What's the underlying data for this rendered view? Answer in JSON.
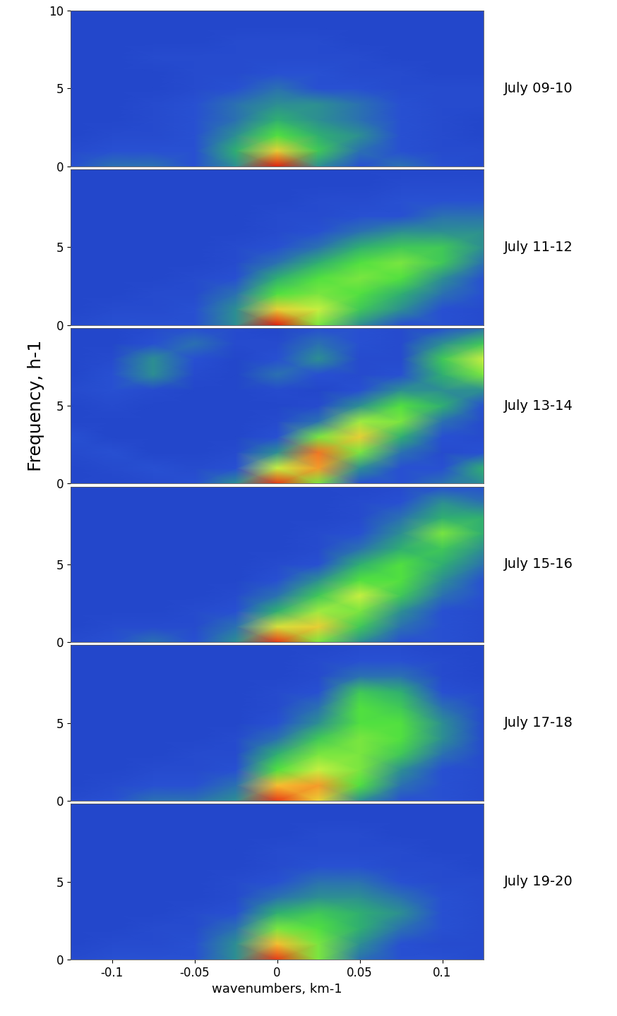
{
  "chart_data": [
    {
      "type": "heatmap",
      "title": "July 09-10",
      "x": [
        -0.125,
        -0.1,
        -0.075,
        -0.05,
        -0.025,
        0,
        0.025,
        0.05,
        0.075,
        0.1,
        0.125
      ],
      "y": [
        0,
        1,
        2,
        3,
        4,
        5,
        6,
        7,
        8,
        9,
        10
      ],
      "xlim": [
        -0.125,
        0.125
      ],
      "ylim": [
        0,
        10
      ],
      "xticks": [
        -0.1,
        -0.05,
        0,
        0.05,
        0.1
      ],
      "yticks": [
        0,
        5,
        10
      ],
      "color_range": [
        0,
        10
      ],
      "tick_labels": "y",
      "cells": [
        [
          2,
          2.5,
          2.5,
          2,
          3,
          10,
          3,
          2,
          2.5,
          2,
          1.5
        ],
        [
          1.5,
          2,
          2,
          2,
          3.5,
          7,
          4,
          2.5,
          2,
          1.5,
          1.5
        ],
        [
          1,
          1.5,
          1.5,
          2,
          3,
          4.5,
          3.5,
          3,
          2,
          1.5,
          1
        ],
        [
          1,
          1,
          1.5,
          2,
          2.5,
          3.5,
          3,
          2.5,
          2,
          1.5,
          1
        ],
        [
          1,
          1,
          1.5,
          2,
          2.5,
          3,
          3,
          2.5,
          2,
          1.5,
          1.5
        ],
        [
          1,
          1,
          1,
          1.5,
          2,
          2.5,
          2,
          2,
          1.5,
          1.5,
          1.5
        ],
        [
          1,
          1,
          1,
          1.5,
          1.5,
          2,
          2,
          1.5,
          1.5,
          1,
          1
        ],
        [
          1,
          1,
          1.5,
          1.5,
          1.5,
          1.5,
          1.5,
          1.5,
          1,
          1,
          1
        ],
        [
          1,
          1,
          1,
          1,
          1.5,
          1.5,
          1.5,
          1,
          1,
          1,
          1
        ],
        [
          1,
          1,
          1,
          1,
          1,
          1,
          1,
          1,
          1,
          1,
          1
        ],
        [
          1,
          1,
          1,
          1,
          1,
          1,
          1,
          1,
          1,
          1,
          1
        ]
      ]
    },
    {
      "type": "heatmap",
      "title": "July 11-12",
      "x": [
        -0.125,
        -0.1,
        -0.075,
        -0.05,
        -0.025,
        0,
        0.025,
        0.05,
        0.075,
        0.1,
        0.125
      ],
      "y": [
        0,
        1,
        2,
        3,
        4,
        5,
        6,
        7,
        8,
        9,
        10
      ],
      "xlim": [
        -0.125,
        0.125
      ],
      "ylim": [
        0,
        10
      ],
      "xticks": [
        -0.1,
        -0.05,
        0,
        0.05,
        0.1
      ],
      "yticks": [
        0,
        5
      ],
      "color_range": [
        0,
        10
      ],
      "tick_labels": "y",
      "cells": [
        [
          1.5,
          2,
          2,
          2,
          3,
          10,
          5,
          3,
          2,
          2,
          1.5
        ],
        [
          1,
          1.5,
          1.5,
          2,
          3,
          7,
          6,
          4,
          3,
          2,
          1.5
        ],
        [
          1,
          1,
          1.5,
          1.5,
          2.5,
          4.5,
          5,
          4.5,
          3.5,
          2.5,
          2
        ],
        [
          1,
          1,
          1,
          1.5,
          2,
          3.5,
          4.5,
          5,
          4.5,
          3,
          2
        ],
        [
          1,
          1,
          1,
          1,
          1.5,
          2.5,
          3.5,
          4.5,
          5,
          4,
          2.5
        ],
        [
          1,
          1,
          1,
          1,
          1.5,
          2,
          2.5,
          3.5,
          4,
          4,
          3
        ],
        [
          1,
          1,
          1,
          1,
          1,
          1.5,
          2,
          2.5,
          3,
          3,
          3
        ],
        [
          1,
          1,
          1,
          1,
          1,
          1.5,
          1.5,
          2,
          2,
          2.5,
          2.5
        ],
        [
          1,
          1,
          1,
          1,
          1,
          1,
          1.5,
          1.5,
          2,
          2,
          2
        ],
        [
          1,
          1,
          1,
          1,
          1,
          1,
          1,
          1,
          1.5,
          1.5,
          1.5
        ],
        [
          1,
          1,
          1,
          1,
          1,
          1,
          1,
          1,
          1,
          1,
          1
        ]
      ]
    },
    {
      "type": "heatmap",
      "title": "July 13-14",
      "ylabel": "Frequency, h-1",
      "x": [
        -0.125,
        -0.1,
        -0.075,
        -0.05,
        -0.025,
        0,
        0.025,
        0.05,
        0.075,
        0.1,
        0.125
      ],
      "y": [
        0,
        1,
        2,
        3,
        4,
        5,
        6,
        7,
        8,
        9,
        10
      ],
      "xlim": [
        -0.125,
        0.125
      ],
      "ylim": [
        0,
        10
      ],
      "xticks": [
        -0.1,
        -0.05,
        0,
        0.05,
        0.1
      ],
      "yticks": [
        0,
        5
      ],
      "color_range": [
        0,
        10
      ],
      "tick_labels": "y",
      "cells": [
        [
          1,
          1,
          1.5,
          2,
          3,
          9.5,
          5,
          2,
          2,
          2.5,
          3
        ],
        [
          1,
          1.5,
          2,
          1.5,
          2,
          6,
          8,
          3,
          2,
          2,
          3.5
        ],
        [
          1.5,
          2,
          1,
          1,
          1.5,
          3,
          8.5,
          5,
          2.5,
          1.5,
          2
        ],
        [
          2,
          1,
          1,
          1,
          1,
          2,
          5,
          7,
          3.5,
          2,
          1.5
        ],
        [
          1,
          1,
          1,
          1,
          1,
          1.5,
          2.5,
          5.5,
          5,
          2.5,
          1.5
        ],
        [
          1,
          1.5,
          1,
          1,
          1,
          1,
          1.5,
          3,
          4.5,
          3.5,
          2
        ],
        [
          1.5,
          2,
          1.5,
          1,
          1,
          1.5,
          1,
          2,
          3,
          3,
          3
        ],
        [
          1,
          2,
          3,
          1.5,
          1,
          2.5,
          2,
          1.5,
          2,
          3.5,
          5
        ],
        [
          1,
          1.5,
          3,
          2,
          1,
          2,
          3,
          1.5,
          1.5,
          4,
          6
        ],
        [
          1,
          1,
          2,
          2.5,
          1.5,
          1.5,
          2.5,
          2,
          1.5,
          3,
          4
        ],
        [
          1,
          1,
          1.5,
          2,
          1.5,
          1,
          2,
          2,
          1.5,
          2,
          2.5
        ]
      ]
    },
    {
      "type": "heatmap",
      "title": "July 15-16",
      "x": [
        -0.125,
        -0.1,
        -0.075,
        -0.05,
        -0.025,
        0,
        0.025,
        0.05,
        0.075,
        0.1,
        0.125
      ],
      "y": [
        0,
        1,
        2,
        3,
        4,
        5,
        6,
        7,
        8,
        9,
        10
      ],
      "xlim": [
        -0.125,
        0.125
      ],
      "ylim": [
        0,
        10
      ],
      "xticks": [
        -0.1,
        -0.05,
        0,
        0.05,
        0.1
      ],
      "yticks": [
        0,
        5
      ],
      "color_range": [
        0,
        10
      ],
      "tick_labels": "y",
      "cells": [
        [
          1.5,
          2,
          2.5,
          2,
          3,
          9.5,
          5,
          3,
          2,
          2,
          1.5
        ],
        [
          1,
          1.5,
          1.5,
          1.5,
          2.5,
          6.5,
          7,
          4,
          2.5,
          2,
          1.5
        ],
        [
          1,
          1,
          1,
          1.5,
          2,
          3.5,
          5.5,
          5,
          3,
          2,
          1.5
        ],
        [
          1,
          1,
          1,
          1,
          1.5,
          2.5,
          4,
          6,
          4,
          2.5,
          2
        ],
        [
          1,
          1,
          1,
          1,
          1,
          2,
          3,
          4.5,
          4.5,
          3,
          2
        ],
        [
          1,
          1,
          1,
          1,
          1,
          1.5,
          2,
          3.5,
          4.5,
          3.5,
          2.5
        ],
        [
          1,
          1,
          1,
          1,
          1,
          1,
          1.5,
          2.5,
          3.5,
          4,
          3
        ],
        [
          1,
          1,
          1,
          1,
          1,
          1,
          1.5,
          2,
          3,
          5,
          3.5
        ],
        [
          1,
          1,
          1,
          1,
          1,
          1,
          1,
          1.5,
          2.5,
          3.5,
          3.5
        ],
        [
          1,
          1,
          1,
          1,
          1,
          1,
          1,
          1.5,
          2,
          3,
          2.5
        ],
        [
          1,
          1,
          1,
          1,
          1,
          1,
          1,
          1,
          1.5,
          2,
          2
        ]
      ]
    },
    {
      "type": "heatmap",
      "title": "July 17-18",
      "x": [
        -0.125,
        -0.1,
        -0.075,
        -0.05,
        -0.025,
        0,
        0.025,
        0.05,
        0.075,
        0.1,
        0.125
      ],
      "y": [
        0,
        1,
        2,
        3,
        4,
        5,
        6,
        7,
        8,
        9,
        10
      ],
      "xlim": [
        -0.125,
        0.125
      ],
      "ylim": [
        0,
        10
      ],
      "xticks": [
        -0.1,
        -0.05,
        0,
        0.05,
        0.1
      ],
      "yticks": [
        0,
        5
      ],
      "color_range": [
        0,
        10
      ],
      "tick_labels": "y",
      "cells": [
        [
          1.5,
          2,
          2.5,
          2.5,
          3,
          9.5,
          7,
          3,
          2,
          2,
          1.5
        ],
        [
          1,
          1.5,
          2,
          2,
          2.5,
          7.5,
          8,
          4.5,
          2.5,
          2,
          1.5
        ],
        [
          1,
          1,
          1.5,
          1.5,
          2,
          4.5,
          6,
          5,
          3,
          2,
          1.5
        ],
        [
          1,
          1,
          1,
          1.5,
          1.5,
          3.5,
          5,
          5,
          4,
          2.5,
          1.5
        ],
        [
          1,
          1,
          1,
          1,
          1.5,
          2.5,
          4,
          5,
          4.5,
          3,
          1.5
        ],
        [
          1,
          1,
          1,
          1,
          1,
          2,
          3,
          4.5,
          4.5,
          3,
          1.5
        ],
        [
          1,
          1,
          1,
          1,
          1,
          1.5,
          2.5,
          4.5,
          4,
          2.5,
          1.5
        ],
        [
          1,
          1,
          1,
          1,
          1,
          1.5,
          2,
          4,
          3.5,
          2,
          1.5
        ],
        [
          1,
          1,
          1,
          1,
          1,
          1,
          1.5,
          2.5,
          2.5,
          1.5,
          1
        ],
        [
          1,
          1,
          1,
          1,
          1,
          1,
          1.5,
          2,
          2,
          1.5,
          1
        ],
        [
          1,
          1,
          1,
          1,
          1,
          1,
          1,
          1.5,
          1.5,
          1,
          1
        ]
      ]
    },
    {
      "type": "heatmap",
      "title": "July 19-20",
      "xlabel": "wavenumbers, km-1",
      "x": [
        -0.125,
        -0.1,
        -0.075,
        -0.05,
        -0.025,
        0,
        0.025,
        0.05,
        0.075,
        0.1,
        0.125
      ],
      "y": [
        0,
        1,
        2,
        3,
        4,
        5,
        6,
        7,
        8,
        9,
        10
      ],
      "xlim": [
        -0.125,
        0.125
      ],
      "ylim": [
        0,
        10
      ],
      "xticks": [
        -0.1,
        -0.05,
        0,
        0.05,
        0.1
      ],
      "yticks": [
        0,
        5
      ],
      "color_range": [
        0,
        10
      ],
      "tick_labels": true,
      "cells": [
        [
          1.5,
          2,
          2,
          2,
          3,
          9.5,
          5,
          2.5,
          2,
          2,
          1.5
        ],
        [
          1,
          1.5,
          1.5,
          2,
          3,
          7.5,
          5,
          3,
          2,
          1.5,
          1.5
        ],
        [
          1,
          1,
          1.5,
          1.5,
          2.5,
          5,
          4.5,
          3.5,
          2.5,
          2,
          1.5
        ],
        [
          1,
          1,
          1,
          1.5,
          2,
          3.5,
          4,
          3.5,
          3,
          2,
          1.5
        ],
        [
          1,
          1,
          1,
          1,
          1.5,
          2.5,
          3,
          3,
          2.5,
          2,
          1.5
        ],
        [
          1,
          1,
          1,
          1,
          1.5,
          2,
          2.5,
          2.5,
          2,
          1.5,
          1.5
        ],
        [
          1,
          1,
          1,
          1,
          1,
          1.5,
          2,
          2,
          1.5,
          1.5,
          1
        ],
        [
          1,
          1,
          1,
          1,
          1,
          1.5,
          1.5,
          1.5,
          1.5,
          1,
          1
        ],
        [
          1,
          1,
          1,
          1,
          1,
          1,
          1.5,
          1.5,
          1,
          1,
          1
        ],
        [
          1,
          1,
          1,
          1,
          1,
          1,
          1,
          1,
          1,
          1,
          1
        ],
        [
          1,
          1,
          1,
          1,
          1,
          1,
          1,
          1,
          1,
          1,
          1
        ]
      ]
    }
  ]
}
